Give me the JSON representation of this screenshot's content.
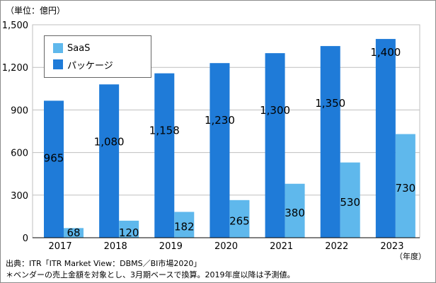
{
  "unit_label": "（単位：億円）",
  "x_unit_label": "（年度）",
  "source": "出典：ITR「ITR Market View：DBMS／BI市場2020」",
  "footnote": "＊ベンダーの売上金額を対象とし、3月期ベースで換算。2019年度以降は予測値。",
  "colors": {
    "package": "#1f7bd8",
    "saas": "#5fb8ec",
    "grid": "#bfbfbf",
    "axis": "#000000"
  },
  "chart_data": {
    "type": "bar",
    "categories": [
      "2017",
      "2018",
      "2019",
      "2020",
      "2021",
      "2022",
      "2023"
    ],
    "series": [
      {
        "name": "パッケージ",
        "values": [
          965,
          1080,
          1158,
          1230,
          1300,
          1350,
          1400
        ]
      },
      {
        "name": "SaaS",
        "values": [
          68,
          120,
          182,
          265,
          380,
          530,
          730
        ]
      }
    ],
    "data_labels": {
      "package": [
        "965",
        "1,080",
        "1,158",
        "1,230",
        "1,300",
        "1,350",
        "1,400"
      ],
      "saas": [
        "68",
        "120",
        "182",
        "265",
        "380",
        "530",
        "730"
      ]
    },
    "ylim": [
      0,
      1500
    ],
    "yticks": [
      0,
      300,
      600,
      900,
      1200,
      1500
    ],
    "ytick_labels": [
      "0",
      "300",
      "600",
      "900",
      "1,200",
      "1,500"
    ],
    "grid": true,
    "legend_position": "top-left",
    "legend": [
      "SaaS",
      "パッケージ"
    ]
  }
}
